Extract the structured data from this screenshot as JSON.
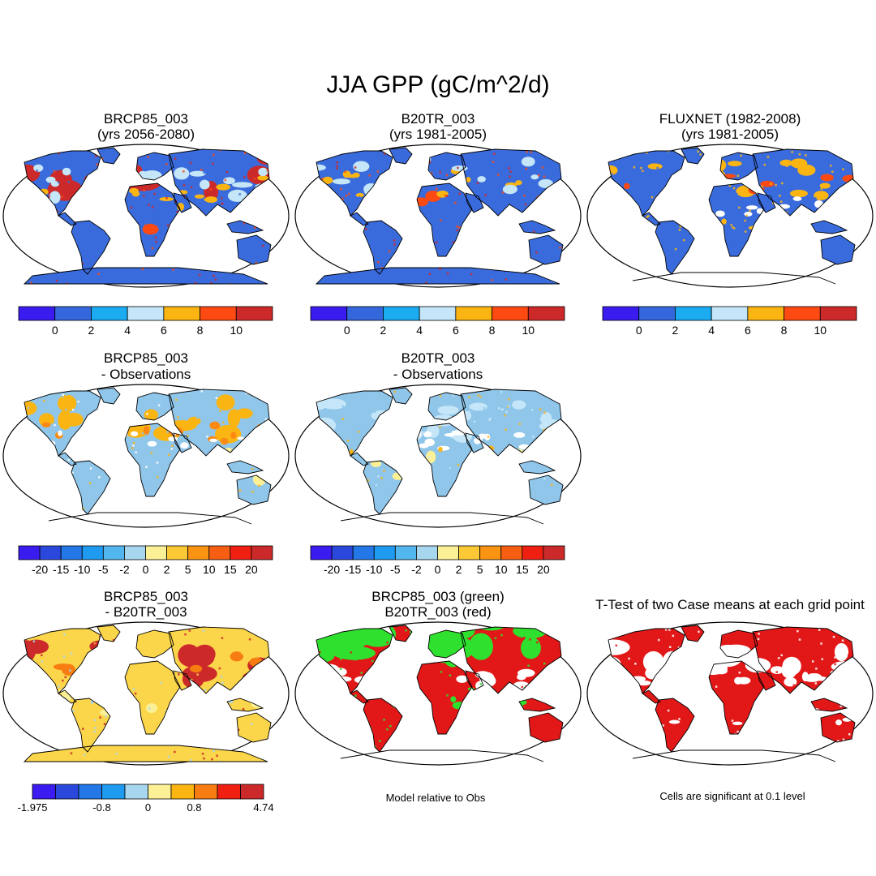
{
  "chart_data": {
    "type": "figure",
    "title": "JJA GPP (gC/m^2/d)",
    "panels": [
      {
        "id": "brcp85",
        "title_line1": "BRCP85_003",
        "title_line2": "(yrs 2056-2080)",
        "kind": "mean",
        "tone": "future"
      },
      {
        "id": "b20tr",
        "title_line1": "B20TR_003",
        "title_line2": "(yrs 1981-2005)",
        "kind": "mean",
        "tone": "hist"
      },
      {
        "id": "fluxnet",
        "title_line1": "FLUXNET (1982-2008)",
        "title_line2": "(yrs 1981-2005)",
        "kind": "obs",
        "tone": "obs"
      },
      {
        "id": "brcp85-minus-obs",
        "title_line1": "BRCP85_003",
        "title_line2": "- Observations",
        "kind": "bias",
        "tone": "warm"
      },
      {
        "id": "b20tr-minus-obs",
        "title_line1": "B20TR_003",
        "title_line2": "- Observations",
        "kind": "bias",
        "tone": "cool"
      },
      {
        "id": "brcp85-minus-b20tr",
        "title_line1": "BRCP85_003",
        "title_line2": "- B20TR_003",
        "kind": "diff",
        "tone": "diff"
      },
      {
        "id": "green-red",
        "title_line1": "BRCP85_003 (green)",
        "title_line2": "B20TR_003 (red)",
        "kind": "relative",
        "tone": "greenred"
      },
      {
        "id": "ttest",
        "title_line1": "T-Test of two Case means at each grid point",
        "title_line2": "",
        "kind": "ttest",
        "tone": "ttest"
      }
    ],
    "colorbars": {
      "mean": {
        "colors": [
          "#3a1cf0",
          "#3466dc",
          "#1aabf0",
          "#c4e6f8",
          "#fbb512",
          "#fc4a12",
          "#cc2a2a"
        ],
        "tick_labels": [
          "0",
          "2",
          "4",
          "6",
          "8",
          "10"
        ]
      },
      "bias": {
        "colors": [
          "#3a1cf0",
          "#2a48dc",
          "#2477e6",
          "#1e9af0",
          "#53b7ef",
          "#a7d6ef",
          "#fbf095",
          "#fbc836",
          "#fa9412",
          "#f65f12",
          "#ef1f12",
          "#cc2a2a"
        ],
        "tick_labels": [
          "-20",
          "-15",
          "-10",
          "-5",
          "-2",
          "0",
          "2",
          "5",
          "10",
          "15",
          "20"
        ]
      },
      "diff": {
        "colors": [
          "#3a1cf0",
          "#2a48dc",
          "#2477e6",
          "#1e9af0",
          "#a7d6ef",
          "#fbf095",
          "#fbb512",
          "#f77d12",
          "#ef1f12",
          "#cc2a2a"
        ],
        "tick_labels": [
          "-1.975",
          "-0.8",
          "0",
          "0.8",
          "4.74"
        ]
      }
    },
    "footnotes": {
      "relative": "Model relative to Obs",
      "ttest": "Cells are significant at 0.1 level"
    }
  }
}
